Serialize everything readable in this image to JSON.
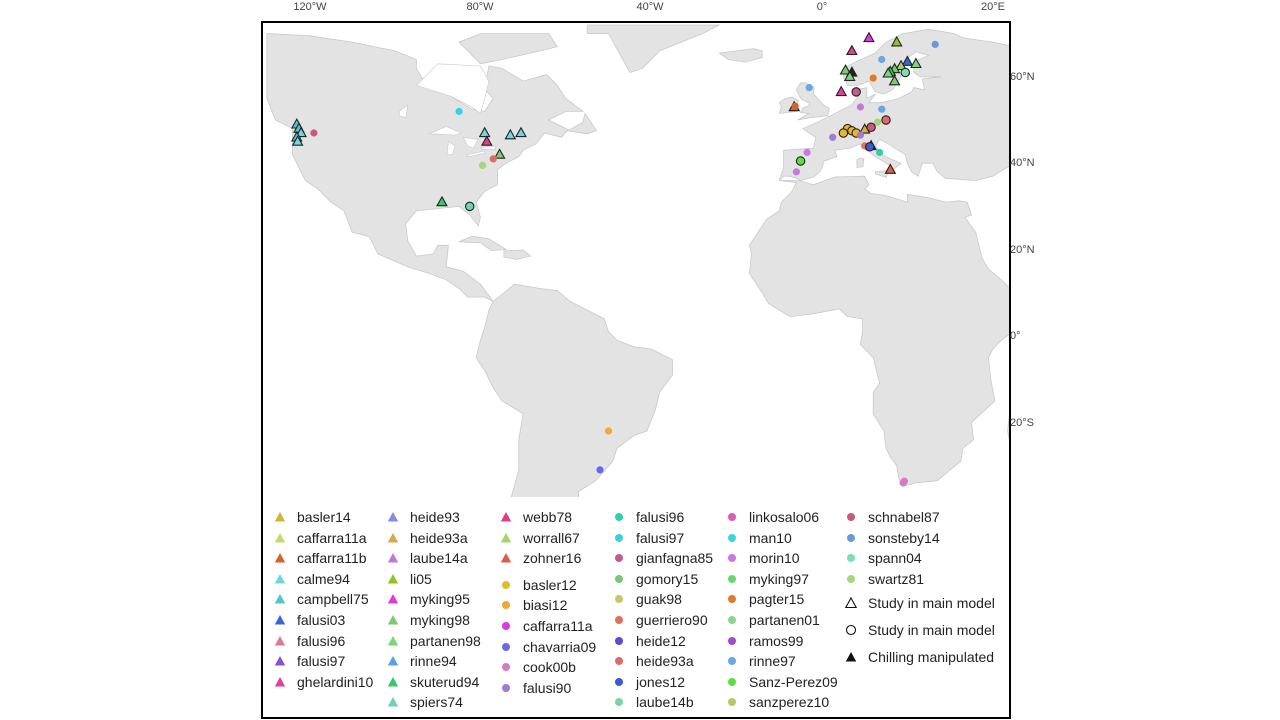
{
  "map": {
    "lon_ticks": [
      "120°W",
      "80°W",
      "40°W",
      "0°",
      "20°E"
    ],
    "lat_ticks": [
      "60°N",
      "40°N",
      "20°N",
      "0°",
      "20°S"
    ],
    "colors": {
      "land": "#e3e3e3",
      "land_edge": "#c9c9c9",
      "ocean": "#ffffff",
      "marker_edge": "#222222"
    }
  },
  "legend": {
    "triangle_studies": [
      {
        "label": "basler14",
        "color": "#d4b23a"
      },
      {
        "label": "caffarra11a",
        "color": "#c9d66a"
      },
      {
        "label": "caffarra11b",
        "color": "#d6622a"
      },
      {
        "label": "calme94",
        "color": "#6fd6e6"
      },
      {
        "label": "campbell75",
        "color": "#4fc7c7"
      },
      {
        "label": "falusi03",
        "color": "#3a66d6"
      },
      {
        "label": "falusi96",
        "color": "#e07a8e"
      },
      {
        "label": "falusi97",
        "color": "#8a4fd6"
      },
      {
        "label": "ghelardini10",
        "color": "#e0409a"
      },
      {
        "label": "heide93",
        "color": "#8a8ae6"
      },
      {
        "label": "heide93a",
        "color": "#d8a84a"
      },
      {
        "label": "laube14a",
        "color": "#c07ad6"
      },
      {
        "label": "li05",
        "color": "#8ac62a"
      },
      {
        "label": "myking95",
        "color": "#e03ad6"
      },
      {
        "label": "myking98",
        "color": "#7acc6a"
      },
      {
        "label": "partanen98",
        "color": "#7ad67a"
      },
      {
        "label": "rinne94",
        "color": "#5aa0e6"
      },
      {
        "label": "skuterud94",
        "color": "#3ac66a"
      },
      {
        "label": "spiers74",
        "color": "#6ad6b0"
      },
      {
        "label": "webb78",
        "color": "#e03a8a"
      },
      {
        "label": "worrall67",
        "color": "#a0d66a"
      },
      {
        "label": "zohner16",
        "color": "#e05a4a"
      }
    ],
    "circle_studies": [
      {
        "label": "basler12",
        "color": "#e6b82a"
      },
      {
        "label": "biasi12",
        "color": "#f0a830"
      },
      {
        "label": "caffarra11a",
        "color": "#d63ae0"
      },
      {
        "label": "chavarria09",
        "color": "#6a6ae6"
      },
      {
        "label": "cook00b",
        "color": "#d67ac6"
      },
      {
        "label": "falusi90",
        "color": "#a07ad6"
      },
      {
        "label": "falusi96",
        "color": "#2ad0b0"
      },
      {
        "label": "falusi97",
        "color": "#3ad0e6"
      },
      {
        "label": "gianfagna85",
        "color": "#c85a8a"
      },
      {
        "label": "gomory15",
        "color": "#7ac67a"
      },
      {
        "label": "guak98",
        "color": "#c6c66a"
      },
      {
        "label": "guerriero90",
        "color": "#e0705a"
      },
      {
        "label": "heide12",
        "color": "#5a4ad6"
      },
      {
        "label": "heide93a",
        "color": "#e06a6a"
      },
      {
        "label": "jones12",
        "color": "#3a5ad6"
      },
      {
        "label": "laube14b",
        "color": "#7ad6a0"
      },
      {
        "label": "linkosalo06",
        "color": "#e05ab0"
      },
      {
        "label": "man10",
        "color": "#3ad6d6"
      },
      {
        "label": "morin10",
        "color": "#c67ae0"
      },
      {
        "label": "myking97",
        "color": "#6ad66a"
      },
      {
        "label": "pagter15",
        "color": "#e07a2a"
      },
      {
        "label": "partanen01",
        "color": "#8ad68a"
      },
      {
        "label": "ramos99",
        "color": "#a04ad6"
      },
      {
        "label": "rinne97",
        "color": "#6aa6e0"
      },
      {
        "label": "Sanz-Perez09",
        "color": "#5ae03a"
      },
      {
        "label": "sanzperez10",
        "color": "#b0cc6a"
      },
      {
        "label": "schnabel87",
        "color": "#c85a7a"
      },
      {
        "label": "sonsteby14",
        "color": "#6a9ad6"
      },
      {
        "label": "spann04",
        "color": "#7ae0b0"
      },
      {
        "label": "swartz81",
        "color": "#a6d67a"
      }
    ],
    "shape_keys": [
      {
        "label": "Study in main model",
        "shape": "triangle-open"
      },
      {
        "label": "Study in main model",
        "shape": "circle-open"
      },
      {
        "label": "Chilling manipulated",
        "shape": "triangle-filled"
      }
    ]
  },
  "sites": [
    {
      "shape": "t",
      "color": "#4fc7c7",
      "lon": -123,
      "lat": 49,
      "outline": true
    },
    {
      "shape": "t",
      "color": "#4fc7c7",
      "lon": -122.5,
      "lat": 48,
      "outline": true
    },
    {
      "shape": "t",
      "color": "#6fd6e6",
      "lon": -122,
      "lat": 47,
      "outline": true
    },
    {
      "shape": "t",
      "color": "#4fc7c7",
      "lon": -123,
      "lat": 46,
      "outline": true
    },
    {
      "shape": "t",
      "color": "#6fd6e6",
      "lon": -122.8,
      "lat": 45,
      "outline": true
    },
    {
      "shape": "c",
      "color": "#c85a7a",
      "lon": -119,
      "lat": 47,
      "outline": false
    },
    {
      "shape": "c",
      "color": "#3ad0e6",
      "lon": -85,
      "lat": 52,
      "outline": false
    },
    {
      "shape": "t",
      "color": "#6fd6e6",
      "lon": -79,
      "lat": 47,
      "outline": true
    },
    {
      "shape": "t",
      "color": "#e03a8a",
      "lon": -78.5,
      "lat": 45,
      "outline": true
    },
    {
      "shape": "t",
      "color": "#6fd6e6",
      "lon": -73,
      "lat": 46.5,
      "outline": true
    },
    {
      "shape": "t",
      "color": "#6fd6e6",
      "lon": -70.5,
      "lat": 47,
      "outline": true
    },
    {
      "shape": "t",
      "color": "#7acc6a",
      "lon": -75.5,
      "lat": 42,
      "outline": true
    },
    {
      "shape": "c",
      "color": "#e06a6a",
      "lon": -77,
      "lat": 41,
      "outline": false
    },
    {
      "shape": "c",
      "color": "#a6d67a",
      "lon": -79.5,
      "lat": 39.5,
      "outline": false
    },
    {
      "shape": "t",
      "color": "#3ac66a",
      "lon": -89,
      "lat": 31,
      "outline": true
    },
    {
      "shape": "c",
      "color": "#6ad6b0",
      "lon": -82.5,
      "lat": 30,
      "outline": true
    },
    {
      "shape": "c",
      "color": "#f0a830",
      "lon": -50,
      "lat": -22,
      "outline": false
    },
    {
      "shape": "c",
      "color": "#6a6ae6",
      "lon": -52,
      "lat": -31,
      "outline": false
    },
    {
      "shape": "c",
      "color": "#d67ac6",
      "lon": 19,
      "lat": -34,
      "outline": false
    },
    {
      "shape": "c",
      "color": "#d67ac6",
      "lon": 19.3,
      "lat": -33.6,
      "outline": false
    },
    {
      "shape": "t",
      "color": "#e05a4a",
      "lon": -6.5,
      "lat": 53,
      "outline": true
    },
    {
      "shape": "c",
      "color": "#d6622a",
      "lon": -6.3,
      "lat": 53.2,
      "outline": false
    },
    {
      "shape": "c",
      "color": "#6aa6e0",
      "lon": -3,
      "lat": 57.5,
      "outline": false
    },
    {
      "shape": "t",
      "color": "#e03ad6",
      "lon": 11,
      "lat": 69,
      "outline": true
    },
    {
      "shape": "t",
      "color": "#8ac62a",
      "lon": 17.5,
      "lat": 68,
      "outline": true
    },
    {
      "shape": "c",
      "color": "#6a9ad6",
      "lon": 26.5,
      "lat": 67.5,
      "outline": false
    },
    {
      "shape": "t",
      "color": "#e0409a",
      "lon": 7,
      "lat": 66,
      "outline": true
    },
    {
      "shape": "c",
      "color": "#6aa6e0",
      "lon": 14,
      "lat": 64,
      "outline": false
    },
    {
      "shape": "t",
      "color": "#3a66d6",
      "lon": 20,
      "lat": 63.5,
      "outline": true
    },
    {
      "shape": "t",
      "color": "#7ad67a",
      "lon": 22,
      "lat": 63,
      "outline": true
    },
    {
      "shape": "t",
      "color": "#a0d66a",
      "lon": 18.5,
      "lat": 62.5,
      "outline": true
    },
    {
      "shape": "t",
      "color": "#7acc6a",
      "lon": 17,
      "lat": 61.8,
      "outline": true
    },
    {
      "shape": "t",
      "color": "#3ac66a",
      "lon": 16,
      "lat": 61.2,
      "outline": true
    },
    {
      "shape": "c",
      "color": "#7ae0b0",
      "lon": 19.5,
      "lat": 61,
      "outline": true
    },
    {
      "shape": "t",
      "color": "#7ad67a",
      "lon": 15.5,
      "lat": 60.8,
      "outline": true
    },
    {
      "shape": "t",
      "color": "#7acc6a",
      "lon": 5.5,
      "lat": 61.5,
      "outline": true
    },
    {
      "shape": "t",
      "color": "#222222",
      "lon": 7,
      "lat": 61,
      "outline": true
    },
    {
      "shape": "t",
      "color": "#7ad67a",
      "lon": 6.5,
      "lat": 60,
      "outline": true
    },
    {
      "shape": "c",
      "color": "#e07a2a",
      "lon": 12,
      "lat": 59.7,
      "outline": false
    },
    {
      "shape": "t",
      "color": "#7acc6a",
      "lon": 17,
      "lat": 59,
      "outline": true
    },
    {
      "shape": "t",
      "color": "#e0409a",
      "lon": 4.5,
      "lat": 56.5,
      "outline": true
    },
    {
      "shape": "c",
      "color": "#c85a8a",
      "lon": 8,
      "lat": 56.5,
      "outline": true
    },
    {
      "shape": "c",
      "color": "#c07ad6",
      "lon": 9,
      "lat": 53,
      "outline": false
    },
    {
      "shape": "c",
      "color": "#6aa6e0",
      "lon": 14,
      "lat": 52.5,
      "outline": false
    },
    {
      "shape": "c",
      "color": "#e06a6a",
      "lon": 15,
      "lat": 50,
      "outline": true
    },
    {
      "shape": "c",
      "color": "#a6d67a",
      "lon": 13,
      "lat": 49.5,
      "outline": false
    },
    {
      "shape": "c",
      "color": "#a07ad6",
      "lon": 2.5,
      "lat": 46,
      "outline": false
    },
    {
      "shape": "c",
      "color": "#e6b82a",
      "lon": 6,
      "lat": 48,
      "outline": true
    },
    {
      "shape": "c",
      "color": "#e6b82a",
      "lon": 7,
      "lat": 47.5,
      "outline": true
    },
    {
      "shape": "c",
      "color": "#e6b82a",
      "lon": 8,
      "lat": 47,
      "outline": true
    },
    {
      "shape": "c",
      "color": "#e6b82a",
      "lon": 5,
      "lat": 47,
      "outline": true
    },
    {
      "shape": "t",
      "color": "#d4b23a",
      "lon": 10,
      "lat": 47.8,
      "outline": true
    },
    {
      "shape": "c",
      "color": "#c85a7a",
      "lon": 11.5,
      "lat": 48.3,
      "outline": true
    },
    {
      "shape": "c",
      "color": "#a07ad6",
      "lon": 9,
      "lat": 46.5,
      "outline": false
    },
    {
      "shape": "c",
      "color": "#e0705a",
      "lon": 10,
      "lat": 44,
      "outline": false
    },
    {
      "shape": "t",
      "color": "#222222",
      "lon": 11.5,
      "lat": 44,
      "outline": true
    },
    {
      "shape": "c",
      "color": "#3a5ad6",
      "lon": 11.2,
      "lat": 43.8,
      "outline": true
    },
    {
      "shape": "c",
      "color": "#2ad0b0",
      "lon": 13.5,
      "lat": 42.5,
      "outline": false
    },
    {
      "shape": "t",
      "color": "#e05a4a",
      "lon": 16,
      "lat": 38.5,
      "outline": true
    },
    {
      "shape": "c",
      "color": "#c67ae0",
      "lon": -3.5,
      "lat": 42.5,
      "outline": false
    },
    {
      "shape": "c",
      "color": "#5ae03a",
      "lon": -5,
      "lat": 40.5,
      "outline": true
    },
    {
      "shape": "c",
      "color": "#c67ae0",
      "lon": -6,
      "lat": 38,
      "outline": false
    }
  ]
}
